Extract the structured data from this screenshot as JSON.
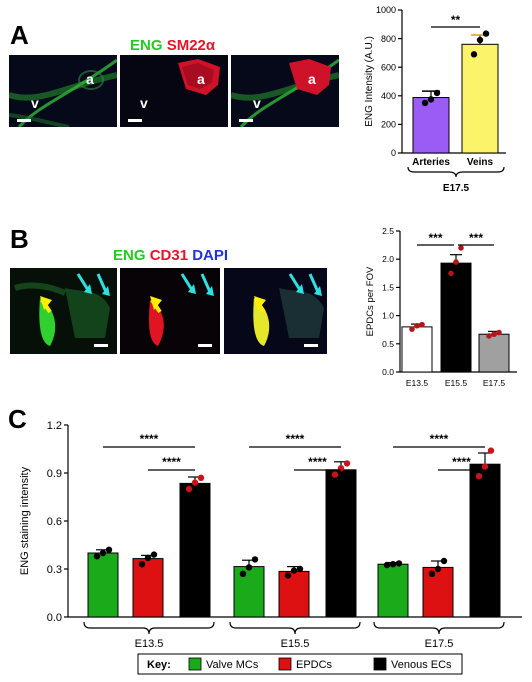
{
  "panels": {
    "a": {
      "letter": "A",
      "stain": [
        {
          "text": "ENG",
          "color": "#22cc22"
        },
        {
          "text": "SM22α",
          "color": "#e8132a"
        }
      ],
      "labels": {
        "artery": "a",
        "vein": "v"
      }
    },
    "b": {
      "letter": "B",
      "stain": [
        {
          "text": "ENG",
          "color": "#22cc22"
        },
        {
          "text": "CD31",
          "color": "#e8132a"
        },
        {
          "text": "DAPI",
          "color": "#2233dd"
        }
      ]
    },
    "c": {
      "letter": "C"
    }
  },
  "chart_data": [
    {
      "id": "A",
      "type": "bar",
      "categories": [
        "Arteries",
        "Veins"
      ],
      "values": [
        388,
        760
      ],
      "errors": [
        45,
        65
      ],
      "points": [
        [
          350,
          375,
          420
        ],
        [
          690,
          790,
          835
        ]
      ],
      "colors": [
        "#9b5cf5",
        "#fbf36a"
      ],
      "ylabel": "ENG Intensity (A.U.)",
      "group_label": "E17.5",
      "ylim": [
        0,
        1000
      ],
      "yticks": [
        "0",
        "200",
        "400",
        "600",
        "800",
        "1000"
      ],
      "significance": [
        {
          "from": "Arteries",
          "to": "Veins",
          "label": "**"
        }
      ]
    },
    {
      "id": "B",
      "type": "bar",
      "categories": [
        "E13.5",
        "E15.5",
        "E17.5"
      ],
      "values": [
        0.8,
        1.93,
        0.67
      ],
      "errors": [
        0.05,
        0.15,
        0.05
      ],
      "points": [
        [
          0.76,
          0.82,
          0.84
        ],
        [
          1.75,
          1.95,
          2.2
        ],
        [
          0.64,
          0.67,
          0.7
        ]
      ],
      "colors": [
        "#ffffff",
        "#000000",
        "#a0a0a0"
      ],
      "ylabel": "EPDCs per FOV",
      "ylim": [
        0,
        2.5
      ],
      "yticks": [
        "0.0",
        "0.5",
        "1.0",
        "1.5",
        "2.0",
        "2.5"
      ],
      "significance": [
        {
          "from": "E13.5",
          "to": "E15.5",
          "label": "***"
        },
        {
          "from": "E15.5",
          "to": "E17.5",
          "label": "***"
        }
      ]
    },
    {
      "id": "C",
      "type": "bar",
      "categories": [
        "E13.5",
        "E15.5",
        "E17.5"
      ],
      "series": [
        {
          "name": "Valve MCs",
          "color": "#1aaa1a",
          "values": [
            0.4,
            0.315,
            0.33
          ],
          "errors": [
            0.02,
            0.04,
            0.01
          ],
          "points": [
            [
              0.38,
              0.4,
              0.42
            ],
            [
              0.27,
              0.31,
              0.36
            ],
            [
              0.325,
              0.33,
              0.335
            ]
          ]
        },
        {
          "name": "EPDCs",
          "color": "#dd1111",
          "values": [
            0.365,
            0.285,
            0.31
          ],
          "errors": [
            0.02,
            0.03,
            0.04
          ],
          "points": [
            [
              0.33,
              0.37,
              0.39
            ],
            [
              0.26,
              0.29,
              0.3
            ],
            [
              0.27,
              0.3,
              0.35
            ]
          ]
        },
        {
          "name": "Venous ECs",
          "color": "#000000",
          "values": [
            0.835,
            0.92,
            0.955
          ],
          "errors": [
            0.04,
            0.05,
            0.07
          ],
          "points": [
            [
              0.8,
              0.84,
              0.87
            ],
            [
              0.89,
              0.93,
              0.96
            ],
            [
              0.88,
              0.94,
              1.04
            ]
          ]
        }
      ],
      "ylabel": "ENG staining intensity",
      "ylim": [
        0,
        1.2
      ],
      "yticks": [
        "0.0",
        "0.3",
        "0.6",
        "0.9",
        "1.2"
      ],
      "significance_label": "****",
      "legend_key": "Key:"
    }
  ]
}
